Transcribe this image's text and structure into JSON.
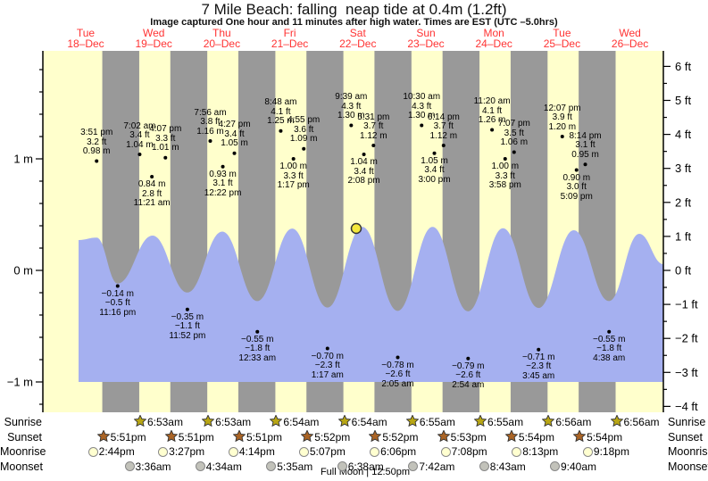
{
  "header": {
    "title": "7 Mile Beach: falling  neap tide at 0.4m (1.2ft)",
    "subtitle": "Image captured One hour and 11 minutes after high water. Times are EST (UTC –5.0hrs)"
  },
  "days": [
    {
      "name": "Tue",
      "date": "18–Dec"
    },
    {
      "name": "Wed",
      "date": "19–Dec"
    },
    {
      "name": "Thu",
      "date": "20–Dec"
    },
    {
      "name": "Fri",
      "date": "21–Dec"
    },
    {
      "name": "Sat",
      "date": "22–Dec"
    },
    {
      "name": "Sun",
      "date": "23–Dec"
    },
    {
      "name": "Mon",
      "date": "24–Dec"
    },
    {
      "name": "Tue",
      "date": "25–Dec"
    },
    {
      "name": "Wed",
      "date": "26–Dec"
    }
  ],
  "chart_data": {
    "type": "area",
    "title": "7 Mile Beach tide heights",
    "y_axis_left": {
      "unit": "m",
      "labels": [
        "1 m",
        "0 m",
        "-1 m"
      ],
      "values": [
        1,
        0,
        -1
      ]
    },
    "y_axis_right": {
      "unit": "ft",
      "labels": [
        "6 ft",
        "5 ft",
        "4 ft",
        "3 ft",
        "2 ft",
        "1 ft",
        "0 ft",
        "-1 ft",
        "-2 ft",
        "-3 ft",
        "-4 ft"
      ],
      "values": [
        6,
        5,
        4,
        3,
        2,
        1,
        0,
        -1,
        -2,
        -3,
        -4
      ]
    },
    "current_marker": {
      "height_m": 0.4,
      "height_ft": 1.2,
      "state": "falling neap tide"
    },
    "tide_events": [
      {
        "day": 0,
        "time": "3:51 pm",
        "ft": "3.2",
        "m": "0.98",
        "type": "high"
      },
      {
        "day": 0,
        "time": "11:16 pm",
        "ft": "-0.5",
        "m": "-0.14",
        "type": "low"
      },
      {
        "day": 1,
        "time": "7:02 am",
        "ft": "3.4",
        "m": "1.04",
        "type": "high"
      },
      {
        "day": 1,
        "time": "11:21 am",
        "ft": "2.8",
        "m": "0.84",
        "type": "low"
      },
      {
        "day": 1,
        "time": "4:07 pm",
        "ft": "3.3",
        "m": "1.01",
        "type": "high"
      },
      {
        "day": 1,
        "time": "11:52 pm",
        "ft": "-1.1",
        "m": "-0.35",
        "type": "low"
      },
      {
        "day": 2,
        "time": "7:56 am",
        "ft": "3.8",
        "m": "1.16",
        "type": "high"
      },
      {
        "day": 2,
        "time": "12:22 pm",
        "ft": "3.1",
        "m": "0.93",
        "type": "low"
      },
      {
        "day": 2,
        "time": "4:27 pm",
        "ft": "3.4",
        "m": "1.05",
        "type": "high"
      },
      {
        "day": 3,
        "time": "12:33 am",
        "ft": "-1.8",
        "m": "-0.55",
        "type": "low"
      },
      {
        "day": 3,
        "time": "8:48 am",
        "ft": "4.1",
        "m": "1.25",
        "type": "high"
      },
      {
        "day": 3,
        "time": "1:17 pm",
        "ft": "3.3",
        "m": "1.00",
        "type": "low"
      },
      {
        "day": 3,
        "time": "4:55 pm",
        "ft": "3.6",
        "m": "1.09",
        "type": "high"
      },
      {
        "day": 4,
        "time": "1:17 am",
        "ft": "-2.3",
        "m": "-0.70",
        "type": "low"
      },
      {
        "day": 4,
        "time": "9:39 am",
        "ft": "4.3",
        "m": "1.30",
        "type": "high"
      },
      {
        "day": 4,
        "time": "2:08 pm",
        "ft": "3.4",
        "m": "1.04",
        "type": "low"
      },
      {
        "day": 4,
        "time": "5:31 pm",
        "ft": "3.7",
        "m": "1.12",
        "type": "high"
      },
      {
        "day": 5,
        "time": "2:05 am",
        "ft": "-2.6",
        "m": "-0.78",
        "type": "low"
      },
      {
        "day": 5,
        "time": "10:30 am",
        "ft": "4.3",
        "m": "1.30",
        "type": "high"
      },
      {
        "day": 5,
        "time": "3:00 pm",
        "ft": "3.4",
        "m": "1.05",
        "type": "low"
      },
      {
        "day": 5,
        "time": "6:14 pm",
        "ft": "3.7",
        "m": "1.12",
        "type": "high"
      },
      {
        "day": 6,
        "time": "2:54 am",
        "ft": "-2.6",
        "m": "-0.79",
        "type": "low"
      },
      {
        "day": 6,
        "time": "11:20 am",
        "ft": "4.1",
        "m": "1.26",
        "type": "high"
      },
      {
        "day": 6,
        "time": "3:58 pm",
        "ft": "3.3",
        "m": "1.00",
        "type": "low"
      },
      {
        "day": 6,
        "time": "7:07 pm",
        "ft": "3.5",
        "m": "1.06",
        "type": "high"
      },
      {
        "day": 7,
        "time": "3:45 am",
        "ft": "-2.3",
        "m": "-0.71",
        "type": "low"
      },
      {
        "day": 7,
        "time": "12:07 pm",
        "ft": "3.9",
        "m": "1.20",
        "type": "high"
      },
      {
        "day": 7,
        "time": "5:09 pm",
        "ft": "3.0",
        "m": "0.90",
        "type": "low"
      },
      {
        "day": 7,
        "time": "8:14 pm",
        "ft": "3.1",
        "m": "0.95",
        "type": "high"
      },
      {
        "day": 8,
        "time": "4:38 am",
        "ft": "-1.8",
        "m": "-0.55",
        "type": "low"
      }
    ],
    "colors": {
      "day_band": "#ffffcc",
      "night_band": "#999999",
      "water": "#a5b0f0",
      "day_label_red": "#ff3333",
      "sunrise_star": "#b8a614",
      "sunset_star": "#aa6425",
      "moonrise_circle": "#ffffd0",
      "moonset_circle": "#c2c2ba",
      "current_dot": "#f4e83c"
    }
  },
  "astro": {
    "rows": [
      {
        "id": "sunrise",
        "label": "Sunrise",
        "icon": "sunrise-star-icon",
        "entries": [
          {
            "day": 1,
            "time": "6:53am"
          },
          {
            "day": 2,
            "time": "6:53am"
          },
          {
            "day": 3,
            "time": "6:54am"
          },
          {
            "day": 4,
            "time": "6:54am"
          },
          {
            "day": 5,
            "time": "6:55am"
          },
          {
            "day": 6,
            "time": "6:55am"
          },
          {
            "day": 7,
            "time": "6:56am"
          },
          {
            "day": 8,
            "time": "6:56am"
          }
        ]
      },
      {
        "id": "sunset",
        "label": "Sunset",
        "icon": "sunset-star-icon",
        "entries": [
          {
            "day": 0,
            "time": "5:51pm"
          },
          {
            "day": 1,
            "time": "5:51pm"
          },
          {
            "day": 2,
            "time": "5:51pm"
          },
          {
            "day": 3,
            "time": "5:52pm"
          },
          {
            "day": 4,
            "time": "5:52pm"
          },
          {
            "day": 5,
            "time": "5:53pm"
          },
          {
            "day": 6,
            "time": "5:54pm"
          },
          {
            "day": 7,
            "time": "5:54pm"
          }
        ]
      },
      {
        "id": "moonrise",
        "label": "Moonrise",
        "icon": "moonrise-circle-icon",
        "entries": [
          {
            "day": 0,
            "time": "2:44pm"
          },
          {
            "day": 1,
            "time": "3:27pm"
          },
          {
            "day": 2,
            "time": "4:14pm"
          },
          {
            "day": 3,
            "time": "5:07pm"
          },
          {
            "day": 4,
            "time": "6:06pm"
          },
          {
            "day": 5,
            "time": "7:08pm"
          },
          {
            "day": 6,
            "time": "8:13pm"
          },
          {
            "day": 7,
            "time": "9:18pm"
          }
        ]
      },
      {
        "id": "moonset",
        "label": "Moonset",
        "icon": "moonset-circle-icon",
        "entries": [
          {
            "day": 1,
            "time": "3:36am"
          },
          {
            "day": 2,
            "time": "4:34am"
          },
          {
            "day": 3,
            "time": "5:35am"
          },
          {
            "day": 4,
            "time": "6:38am"
          },
          {
            "day": 5,
            "time": "7:42am"
          },
          {
            "day": 6,
            "time": "8:43am"
          },
          {
            "day": 7,
            "time": "9:40am"
          }
        ]
      }
    ],
    "full_moon": "Full Moon | 12:50pm"
  }
}
